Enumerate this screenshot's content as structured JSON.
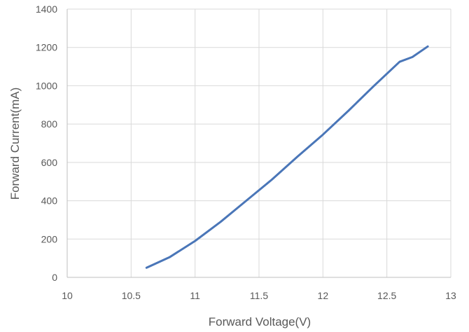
{
  "chart_data": {
    "type": "line",
    "xlabel": "Forward Voltage(V)",
    "ylabel": "Forward Current(mA)",
    "xlim": [
      10,
      13
    ],
    "ylim": [
      0,
      1400
    ],
    "xticks": [
      "10",
      "10.5",
      "11",
      "11.5",
      "12",
      "12.5",
      "13"
    ],
    "yticks": [
      "0",
      "200",
      "400",
      "600",
      "800",
      "1000",
      "1200",
      "1400"
    ],
    "grid": true,
    "series": [
      {
        "color": "#4a76b8",
        "x": [
          10.62,
          10.8,
          11.0,
          11.2,
          11.4,
          11.6,
          11.8,
          12.0,
          12.2,
          12.4,
          12.6,
          12.7,
          12.82
        ],
        "y": [
          50,
          105,
          190,
          290,
          400,
          510,
          630,
          745,
          870,
          1000,
          1125,
          1150,
          1205
        ]
      }
    ]
  }
}
